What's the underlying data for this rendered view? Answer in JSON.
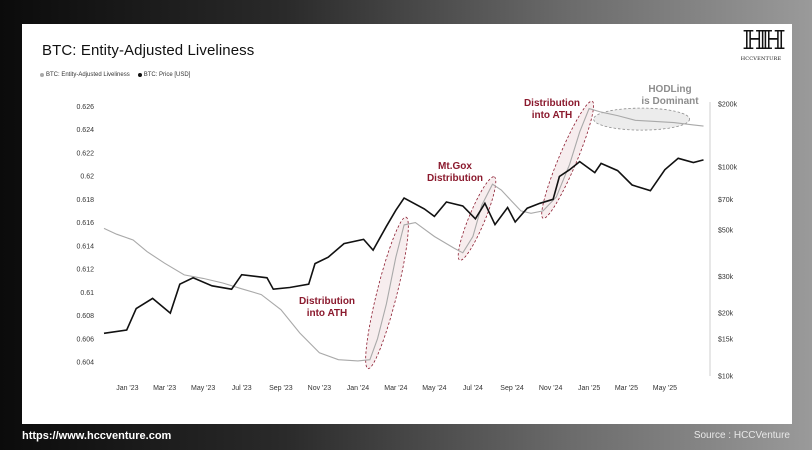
{
  "footer": {
    "url": "https://www.hccventure.com",
    "source": "Source : HCCVenture"
  },
  "logo": {
    "text": "HCCVENTURE"
  },
  "colors": {
    "liveliness": "#a9a9a9",
    "price": "#111111",
    "annotation": "#8b1a2e",
    "hodl_annotation": "#8d8d8d"
  },
  "chart_data": {
    "type": "line",
    "title": "BTC: Entity-Adjusted Liveliness",
    "legend": [
      "BTC: Entity-Adjusted Liveliness",
      "BTC: Price [USD]"
    ],
    "x_ticks": [
      "Jan '23",
      "Mar '23",
      "May '23",
      "Jul '23",
      "Sep '23",
      "Nov '23",
      "Jan '24",
      "Mar '24",
      "May '24",
      "Jul '24",
      "Sep '24",
      "Nov '24",
      "Jan '25",
      "Mar '25",
      "May '25"
    ],
    "y_left": {
      "label": "",
      "ticks": [
        "0.604",
        "0.606",
        "0.608",
        "0.61",
        "0.612",
        "0.614",
        "0.616",
        "0.618",
        "0.62",
        "0.622",
        "0.624",
        "0.626"
      ],
      "ylim": [
        0.6028,
        0.6262
      ]
    },
    "y_right": {
      "label": "",
      "scale": "log",
      "ticks": [
        "$10k",
        "$15k",
        "$20k",
        "$30k",
        "$50k",
        "$70k",
        "$100k",
        "$200k"
      ],
      "ylim": [
        10000,
        200000
      ]
    },
    "series": [
      {
        "name": "BTC: Entity-Adjusted Liveliness",
        "axis": "left",
        "x": [
          "2022-11-25",
          "2022-12-15",
          "2023-01-10",
          "2023-02-01",
          "2023-03-01",
          "2023-04-01",
          "2023-05-01",
          "2023-06-01",
          "2023-07-01",
          "2023-08-01",
          "2023-09-01",
          "2023-10-01",
          "2023-11-01",
          "2023-12-01",
          "2024-01-01",
          "2024-01-20",
          "2024-02-01",
          "2024-02-15",
          "2024-03-01",
          "2024-03-14",
          "2024-04-01",
          "2024-05-01",
          "2024-06-01",
          "2024-06-15",
          "2024-07-01",
          "2024-07-15",
          "2024-08-01",
          "2024-08-15",
          "2024-09-01",
          "2024-09-15",
          "2024-10-01",
          "2024-10-20",
          "2024-11-10",
          "2024-12-01",
          "2024-12-17",
          "2025-01-01",
          "2025-01-20",
          "2025-02-15",
          "2025-03-15",
          "2025-04-15",
          "2025-05-15",
          "2025-06-15",
          "2025-07-01"
        ],
        "y": [
          0.6155,
          0.615,
          0.6145,
          0.6135,
          0.6125,
          0.6115,
          0.6112,
          0.6108,
          0.6103,
          0.6098,
          0.6085,
          0.6065,
          0.6048,
          0.6042,
          0.6041,
          0.6042,
          0.606,
          0.609,
          0.613,
          0.6158,
          0.616,
          0.6148,
          0.6138,
          0.6134,
          0.6148,
          0.6175,
          0.6193,
          0.6188,
          0.6178,
          0.617,
          0.6168,
          0.617,
          0.6182,
          0.621,
          0.6238,
          0.6258,
          0.6255,
          0.6252,
          0.6248,
          0.6247,
          0.6246,
          0.6244,
          0.6243
        ]
      },
      {
        "name": "BTC: Price [USD]",
        "axis": "right",
        "x": [
          "2022-11-25",
          "2022-12-31",
          "2023-01-15",
          "2023-02-10",
          "2023-03-10",
          "2023-03-25",
          "2023-04-15",
          "2023-05-15",
          "2023-06-15",
          "2023-07-01",
          "2023-08-10",
          "2023-08-20",
          "2023-09-15",
          "2023-10-15",
          "2023-10-25",
          "2023-11-15",
          "2023-12-10",
          "2024-01-10",
          "2024-01-25",
          "2024-02-15",
          "2024-03-01",
          "2024-03-14",
          "2024-04-15",
          "2024-05-01",
          "2024-05-20",
          "2024-06-15",
          "2024-07-05",
          "2024-07-20",
          "2024-08-05",
          "2024-08-25",
          "2024-09-06",
          "2024-09-25",
          "2024-10-15",
          "2024-11-05",
          "2024-11-15",
          "2024-12-01",
          "2024-12-17",
          "2025-01-10",
          "2025-01-20",
          "2025-02-15",
          "2025-03-10",
          "2025-04-08",
          "2025-05-01",
          "2025-05-22",
          "2025-06-15",
          "2025-07-01"
        ],
        "y": [
          16000,
          16600,
          21000,
          23500,
          20000,
          27500,
          29500,
          27000,
          26000,
          30500,
          29500,
          26000,
          26500,
          27500,
          34500,
          37000,
          43000,
          45000,
          40000,
          52000,
          62000,
          71000,
          63000,
          58000,
          68000,
          65000,
          56500,
          67000,
          53000,
          64000,
          54500,
          63500,
          67000,
          70000,
          90000,
          97000,
          106000,
          94000,
          104000,
          96000,
          82000,
          77000,
          97000,
          110000,
          105000,
          108000
        ]
      }
    ],
    "annotations": [
      {
        "text": "Distribution into ATH",
        "x": "2024-01-25"
      },
      {
        "text": "Mt.Gox Distribution",
        "x": "2024-07-15"
      },
      {
        "text": "Distribution into ATH",
        "x": "2024-12-15"
      },
      {
        "text": "HODLing is Dominant",
        "x": "2025-03-20"
      }
    ]
  }
}
